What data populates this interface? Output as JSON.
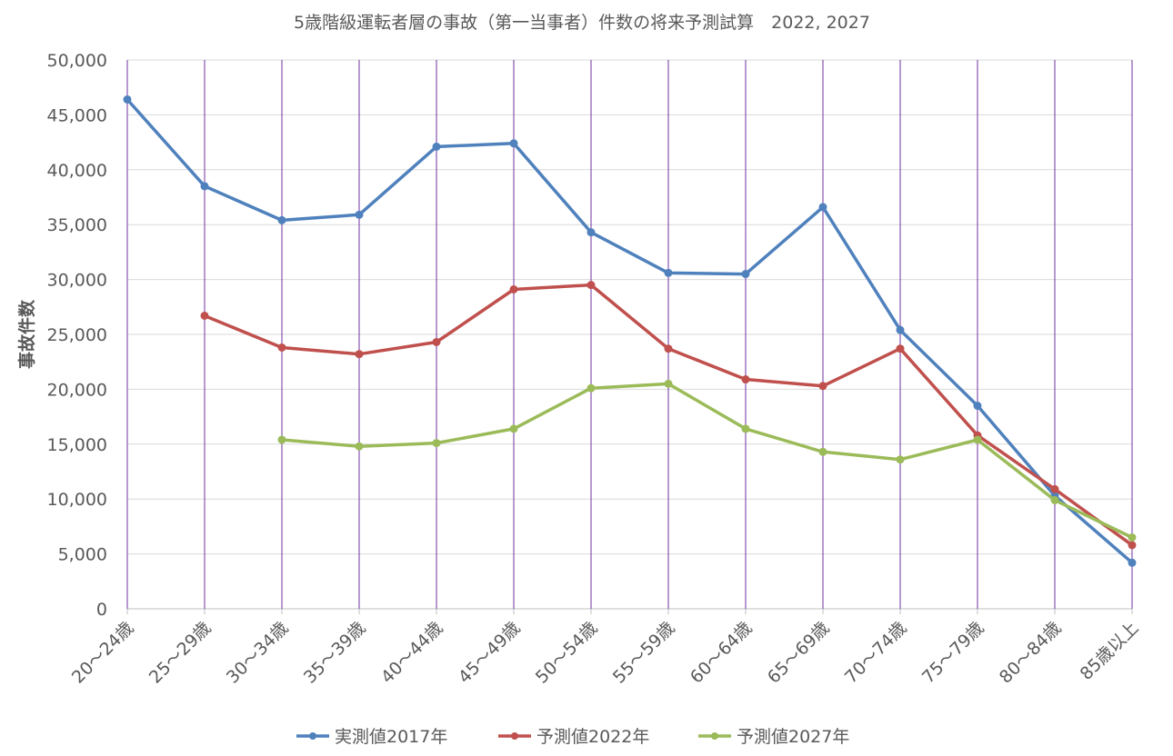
{
  "chart_data": {
    "type": "line",
    "title": "5歳階級運転者層の事故（第一当事者）件数の将来予測試算　2022, 2027",
    "xlabel": "",
    "ylabel": "事故件数",
    "categories": [
      "20～24歳",
      "25～29歳",
      "30～34歳",
      "35～39歳",
      "40～44歳",
      "45～49歳",
      "50～54歳",
      "55～59歳",
      "60～64歳",
      "65～69歳",
      "70～74歳",
      "75～79歳",
      "80～84歳",
      "85歳以上"
    ],
    "y_ticks": [
      "0",
      "5,000",
      "10,000",
      "15,000",
      "20,000",
      "25,000",
      "30,000",
      "35,000",
      "40,000",
      "45,000",
      "50,000"
    ],
    "ylim": [
      0,
      50000
    ],
    "grid": "horizontal",
    "legend_position": "bottom",
    "series": [
      {
        "name": "実測値2017年",
        "color": "#4f81bd",
        "values": [
          46400,
          38500,
          35400,
          35900,
          42100,
          42400,
          34300,
          30600,
          30500,
          36600,
          25400,
          18500,
          10300,
          4200
        ]
      },
      {
        "name": "予測値2022年",
        "color": "#c0504d",
        "values": [
          null,
          26700,
          23800,
          23200,
          24300,
          29100,
          29500,
          23700,
          20900,
          20300,
          23700,
          15800,
          10900,
          5800
        ]
      },
      {
        "name": "予測値2027年",
        "color": "#9bbb59",
        "values": [
          null,
          null,
          15400,
          14800,
          15100,
          16400,
          20100,
          20500,
          16400,
          14300,
          13600,
          15400,
          9900,
          6500
        ]
      }
    ]
  }
}
